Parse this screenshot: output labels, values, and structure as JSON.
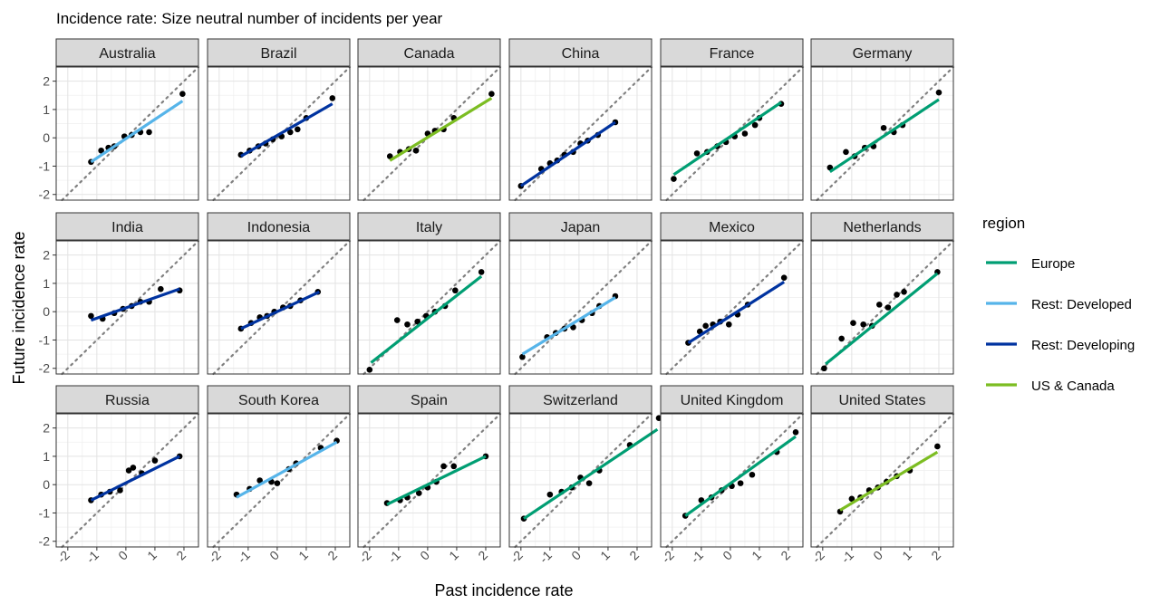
{
  "chart_data": {
    "type": "scatter",
    "title": "Incidence rate: Size neutral number of incidents per year",
    "xlabel": "Past incidence rate",
    "ylabel": "Future incidence rate",
    "xlim": [
      -2.4,
      2.5
    ],
    "ylim": [
      -2.2,
      2.5
    ],
    "x_ticks": [
      -2,
      -1,
      0,
      1,
      2
    ],
    "y_ticks": [
      -2,
      -1,
      0,
      1,
      2
    ],
    "x_tick_labels": [
      "-2",
      "-1",
      "0",
      "1",
      "2"
    ],
    "y_tick_labels": [
      "-2",
      "-1",
      "0",
      "1",
      "2"
    ],
    "grid": true,
    "reference_line": "y = x (dotted)",
    "legend": {
      "title": "region",
      "position": "right",
      "entries": [
        {
          "label": "Europe",
          "color": "#009E73"
        },
        {
          "label": "Rest: Developed",
          "color": "#56B4E9"
        },
        {
          "label": "Rest: Developing",
          "color": "#0033A0"
        },
        {
          "label": "US & Canada",
          "color": "#7CBD22"
        }
      ]
    },
    "panels": [
      {
        "name": "Australia",
        "region": "Rest: Developed",
        "fit": [
          [
            -1.2,
            -0.85
          ],
          [
            1.95,
            1.3
          ]
        ],
        "points": [
          [
            -1.2,
            -0.85
          ],
          [
            -0.85,
            -0.45
          ],
          [
            -0.6,
            -0.35
          ],
          [
            -0.4,
            -0.3
          ],
          [
            -0.05,
            0.05
          ],
          [
            0.2,
            0.1
          ],
          [
            0.5,
            0.2
          ],
          [
            0.8,
            0.2
          ],
          [
            1.95,
            1.55
          ]
        ]
      },
      {
        "name": "Brazil",
        "region": "Rest: Developing",
        "fit": [
          [
            -1.25,
            -0.65
          ],
          [
            1.9,
            1.2
          ]
        ],
        "points": [
          [
            -1.25,
            -0.6
          ],
          [
            -0.95,
            -0.45
          ],
          [
            -0.65,
            -0.3
          ],
          [
            -0.4,
            -0.2
          ],
          [
            -0.15,
            -0.05
          ],
          [
            0.15,
            0.05
          ],
          [
            0.45,
            0.2
          ],
          [
            0.7,
            0.3
          ],
          [
            1.0,
            0.7
          ],
          [
            1.9,
            1.4
          ]
        ]
      },
      {
        "name": "Canada",
        "region": "US & Canada",
        "fit": [
          [
            -1.3,
            -0.8
          ],
          [
            2.2,
            1.4
          ]
        ],
        "points": [
          [
            -1.3,
            -0.65
          ],
          [
            -0.95,
            -0.5
          ],
          [
            -0.65,
            -0.4
          ],
          [
            -0.4,
            -0.45
          ],
          [
            0.0,
            0.15
          ],
          [
            0.25,
            0.25
          ],
          [
            0.55,
            0.3
          ],
          [
            0.9,
            0.7
          ],
          [
            2.2,
            1.55
          ]
        ]
      },
      {
        "name": "China",
        "region": "Rest: Developing",
        "fit": [
          [
            -2.0,
            -1.7
          ],
          [
            1.25,
            0.55
          ]
        ],
        "points": [
          [
            -2.0,
            -1.7
          ],
          [
            -1.3,
            -1.1
          ],
          [
            -1.0,
            -0.9
          ],
          [
            -0.75,
            -0.8
          ],
          [
            -0.5,
            -0.6
          ],
          [
            -0.2,
            -0.5
          ],
          [
            0.05,
            -0.2
          ],
          [
            0.3,
            -0.1
          ],
          [
            0.65,
            0.1
          ],
          [
            1.25,
            0.55
          ]
        ]
      },
      {
        "name": "France",
        "region": "Europe",
        "fit": [
          [
            -1.95,
            -1.3
          ],
          [
            1.75,
            1.25
          ]
        ],
        "points": [
          [
            -1.95,
            -1.45
          ],
          [
            -1.15,
            -0.55
          ],
          [
            -0.8,
            -0.5
          ],
          [
            -0.45,
            -0.3
          ],
          [
            -0.15,
            -0.15
          ],
          [
            0.15,
            0.05
          ],
          [
            0.5,
            0.15
          ],
          [
            0.85,
            0.45
          ],
          [
            1.0,
            0.7
          ],
          [
            1.75,
            1.2
          ]
        ]
      },
      {
        "name": "Germany",
        "region": "Europe",
        "fit": [
          [
            -1.75,
            -1.2
          ],
          [
            2.0,
            1.35
          ]
        ],
        "points": [
          [
            -1.75,
            -1.05
          ],
          [
            -1.2,
            -0.5
          ],
          [
            -0.9,
            -0.65
          ],
          [
            -0.55,
            -0.35
          ],
          [
            -0.25,
            -0.3
          ],
          [
            0.1,
            0.35
          ],
          [
            0.45,
            0.2
          ],
          [
            0.75,
            0.45
          ],
          [
            2.0,
            1.6
          ]
        ]
      },
      {
        "name": "India",
        "region": "Rest: Developing",
        "fit": [
          [
            -1.2,
            -0.3
          ],
          [
            1.85,
            0.8
          ]
        ],
        "points": [
          [
            -1.2,
            -0.15
          ],
          [
            -0.8,
            -0.25
          ],
          [
            -0.4,
            -0.05
          ],
          [
            -0.1,
            0.1
          ],
          [
            0.2,
            0.2
          ],
          [
            0.5,
            0.35
          ],
          [
            0.8,
            0.35
          ],
          [
            1.2,
            0.8
          ],
          [
            1.85,
            0.75
          ]
        ]
      },
      {
        "name": "Indonesia",
        "region": "Rest: Developing",
        "fit": [
          [
            -1.25,
            -0.6
          ],
          [
            1.45,
            0.7
          ]
        ],
        "points": [
          [
            -1.25,
            -0.6
          ],
          [
            -0.9,
            -0.4
          ],
          [
            -0.6,
            -0.2
          ],
          [
            -0.35,
            -0.15
          ],
          [
            -0.1,
            0.0
          ],
          [
            0.2,
            0.15
          ],
          [
            0.45,
            0.2
          ],
          [
            0.8,
            0.4
          ],
          [
            1.4,
            0.7
          ]
        ]
      },
      {
        "name": "Italy",
        "region": "Europe",
        "fit": [
          [
            -1.95,
            -1.8
          ],
          [
            1.85,
            1.25
          ]
        ],
        "points": [
          [
            -2.0,
            -2.05
          ],
          [
            -1.05,
            -0.3
          ],
          [
            -0.7,
            -0.45
          ],
          [
            -0.35,
            -0.35
          ],
          [
            -0.05,
            -0.15
          ],
          [
            0.25,
            0.0
          ],
          [
            0.6,
            0.2
          ],
          [
            0.95,
            0.75
          ],
          [
            1.85,
            1.4
          ]
        ]
      },
      {
        "name": "Japan",
        "region": "Rest: Developed",
        "fit": [
          [
            -1.95,
            -1.5
          ],
          [
            1.25,
            0.5
          ]
        ],
        "points": [
          [
            -1.95,
            -1.6
          ],
          [
            -1.1,
            -0.9
          ],
          [
            -0.8,
            -0.75
          ],
          [
            -0.5,
            -0.6
          ],
          [
            -0.2,
            -0.55
          ],
          [
            0.1,
            -0.3
          ],
          [
            0.45,
            -0.05
          ],
          [
            0.7,
            0.2
          ],
          [
            1.25,
            0.55
          ]
        ]
      },
      {
        "name": "Mexico",
        "region": "Rest: Developing",
        "fit": [
          [
            -1.45,
            -1.1
          ],
          [
            1.85,
            1.05
          ]
        ],
        "points": [
          [
            -1.45,
            -1.1
          ],
          [
            -1.05,
            -0.7
          ],
          [
            -0.85,
            -0.5
          ],
          [
            -0.6,
            -0.45
          ],
          [
            -0.35,
            -0.35
          ],
          [
            -0.05,
            -0.45
          ],
          [
            0.25,
            -0.1
          ],
          [
            0.6,
            0.25
          ],
          [
            1.85,
            1.2
          ]
        ]
      },
      {
        "name": "Netherlands",
        "region": "Europe",
        "fit": [
          [
            -1.9,
            -1.85
          ],
          [
            1.95,
            1.35
          ]
        ],
        "points": [
          [
            -1.95,
            -2.0
          ],
          [
            -1.35,
            -0.95
          ],
          [
            -0.95,
            -0.4
          ],
          [
            -0.6,
            -0.45
          ],
          [
            -0.3,
            -0.5
          ],
          [
            -0.05,
            0.25
          ],
          [
            0.25,
            0.15
          ],
          [
            0.55,
            0.6
          ],
          [
            0.8,
            0.7
          ],
          [
            1.95,
            1.4
          ]
        ]
      },
      {
        "name": "Russia",
        "region": "Rest: Developing",
        "fit": [
          [
            -1.2,
            -0.55
          ],
          [
            1.85,
            1.0
          ]
        ],
        "points": [
          [
            -1.2,
            -0.55
          ],
          [
            -0.85,
            -0.35
          ],
          [
            -0.55,
            -0.25
          ],
          [
            -0.2,
            -0.2
          ],
          [
            0.1,
            0.5
          ],
          [
            0.25,
            0.6
          ],
          [
            0.55,
            0.4
          ],
          [
            1.0,
            0.85
          ],
          [
            1.85,
            1.0
          ]
        ]
      },
      {
        "name": "South Korea",
        "region": "Rest: Developed",
        "fit": [
          [
            -1.4,
            -0.45
          ],
          [
            2.05,
            1.5
          ]
        ],
        "points": [
          [
            -1.4,
            -0.35
          ],
          [
            -0.95,
            -0.15
          ],
          [
            -0.6,
            0.15
          ],
          [
            -0.2,
            0.1
          ],
          [
            0.0,
            0.05
          ],
          [
            0.4,
            0.55
          ],
          [
            0.65,
            0.75
          ],
          [
            1.5,
            1.3
          ],
          [
            2.05,
            1.55
          ]
        ]
      },
      {
        "name": "Spain",
        "region": "Europe",
        "fit": [
          [
            -1.4,
            -0.7
          ],
          [
            2.0,
            1.0
          ]
        ],
        "points": [
          [
            -1.4,
            -0.65
          ],
          [
            -0.95,
            -0.55
          ],
          [
            -0.7,
            -0.45
          ],
          [
            -0.3,
            -0.3
          ],
          [
            0.0,
            -0.1
          ],
          [
            0.3,
            0.1
          ],
          [
            0.55,
            0.65
          ],
          [
            0.9,
            0.65
          ],
          [
            2.0,
            1.0
          ]
        ]
      },
      {
        "name": "Switzerland",
        "region": "Europe",
        "fit": [
          [
            -1.9,
            -1.2
          ],
          [
            2.7,
            1.95
          ]
        ],
        "points": [
          [
            -1.9,
            -1.2
          ],
          [
            -1.0,
            -0.35
          ],
          [
            -0.6,
            -0.25
          ],
          [
            -0.25,
            -0.1
          ],
          [
            0.05,
            0.25
          ],
          [
            0.35,
            0.05
          ],
          [
            0.7,
            0.5
          ],
          [
            1.75,
            1.4
          ],
          [
            2.75,
            2.35
          ]
        ]
      },
      {
        "name": "United Kingdom",
        "region": "Europe",
        "fit": [
          [
            -1.55,
            -1.1
          ],
          [
            2.25,
            1.7
          ]
        ],
        "points": [
          [
            -1.55,
            -1.1
          ],
          [
            -1.0,
            -0.55
          ],
          [
            -0.65,
            -0.45
          ],
          [
            -0.3,
            -0.2
          ],
          [
            0.05,
            -0.05
          ],
          [
            0.35,
            0.05
          ],
          [
            0.75,
            0.35
          ],
          [
            1.6,
            1.15
          ],
          [
            2.25,
            1.85
          ]
        ]
      },
      {
        "name": "United States",
        "region": "US & Canada",
        "fit": [
          [
            -1.4,
            -0.9
          ],
          [
            1.95,
            1.15
          ]
        ],
        "points": [
          [
            -1.4,
            -0.95
          ],
          [
            -1.0,
            -0.5
          ],
          [
            -0.7,
            -0.45
          ],
          [
            -0.4,
            -0.2
          ],
          [
            -0.1,
            -0.1
          ],
          [
            0.2,
            0.1
          ],
          [
            0.55,
            0.3
          ],
          [
            1.0,
            0.5
          ],
          [
            1.95,
            1.35
          ]
        ]
      }
    ]
  }
}
